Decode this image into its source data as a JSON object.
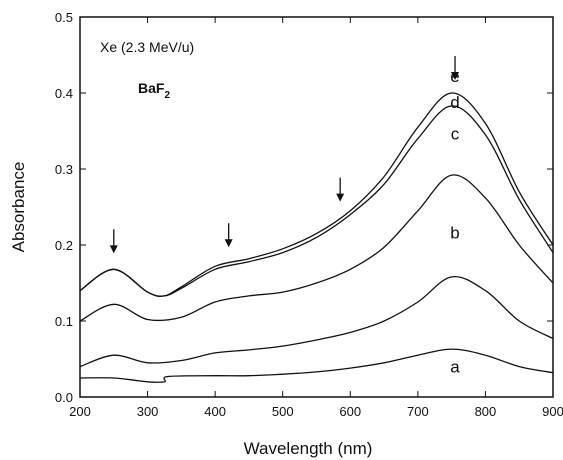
{
  "chart_data": {
    "type": "line",
    "xlabel": "Wavelength (nm)",
    "ylabel": "Absorbance",
    "xlim": [
      200,
      900
    ],
    "ylim": [
      0,
      0.5
    ],
    "x_ticks": [
      200,
      300,
      400,
      500,
      600,
      700,
      800,
      900
    ],
    "x_tick_labels": [
      "200",
      "300",
      "400",
      "500",
      "600",
      "700",
      "800",
      "900"
    ],
    "y_ticks": [
      0,
      0.1,
      0.2,
      0.3,
      0.4,
      0.5
    ],
    "y_tick_labels": [
      "0.0",
      "0.1",
      "0.2",
      "0.3",
      "0.4",
      "0.5"
    ],
    "grid": false,
    "annotation": "Xe (2.3 MeV/u)",
    "material": {
      "main": "BaF",
      "subscript": "2"
    },
    "series": [
      {
        "label": "a",
        "x": [
          200,
          250,
          300,
          325,
          330,
          400,
          450,
          500,
          550,
          600,
          650,
          700,
          750,
          800,
          850,
          900
        ],
        "y": [
          0.025,
          0.025,
          0.02,
          0.02,
          0.027,
          0.028,
          0.028,
          0.03,
          0.033,
          0.038,
          0.045,
          0.055,
          0.063,
          0.055,
          0.04,
          0.032
        ]
      },
      {
        "label": "b",
        "x": [
          200,
          250,
          300,
          350,
          400,
          450,
          500,
          550,
          600,
          650,
          700,
          750,
          800,
          850,
          900
        ],
        "y": [
          0.04,
          0.055,
          0.045,
          0.048,
          0.058,
          0.062,
          0.067,
          0.075,
          0.085,
          0.1,
          0.125,
          0.158,
          0.14,
          0.1,
          0.077
        ]
      },
      {
        "label": "c",
        "x": [
          200,
          250,
          300,
          350,
          400,
          450,
          500,
          550,
          600,
          650,
          700,
          750,
          800,
          850,
          900
        ],
        "y": [
          0.1,
          0.122,
          0.102,
          0.105,
          0.125,
          0.133,
          0.138,
          0.15,
          0.168,
          0.197,
          0.245,
          0.292,
          0.262,
          0.2,
          0.15
        ]
      },
      {
        "label": "d",
        "x": [
          200,
          250,
          300,
          325,
          350,
          400,
          450,
          500,
          550,
          600,
          650,
          700,
          750,
          800,
          850,
          900
        ],
        "y": [
          0.14,
          0.168,
          0.138,
          0.133,
          0.143,
          0.168,
          0.178,
          0.19,
          0.21,
          0.24,
          0.28,
          0.34,
          0.383,
          0.345,
          0.26,
          0.19
        ]
      },
      {
        "label": "e",
        "x": [
          200,
          250,
          300,
          325,
          350,
          400,
          450,
          500,
          550,
          600,
          650,
          700,
          750,
          800,
          850,
          900
        ],
        "y": [
          0.14,
          0.168,
          0.138,
          0.133,
          0.145,
          0.172,
          0.182,
          0.195,
          0.215,
          0.245,
          0.29,
          0.355,
          0.4,
          0.36,
          0.27,
          0.2
        ]
      }
    ],
    "arrows_at_x": [
      250,
      420,
      585,
      755
    ]
  }
}
